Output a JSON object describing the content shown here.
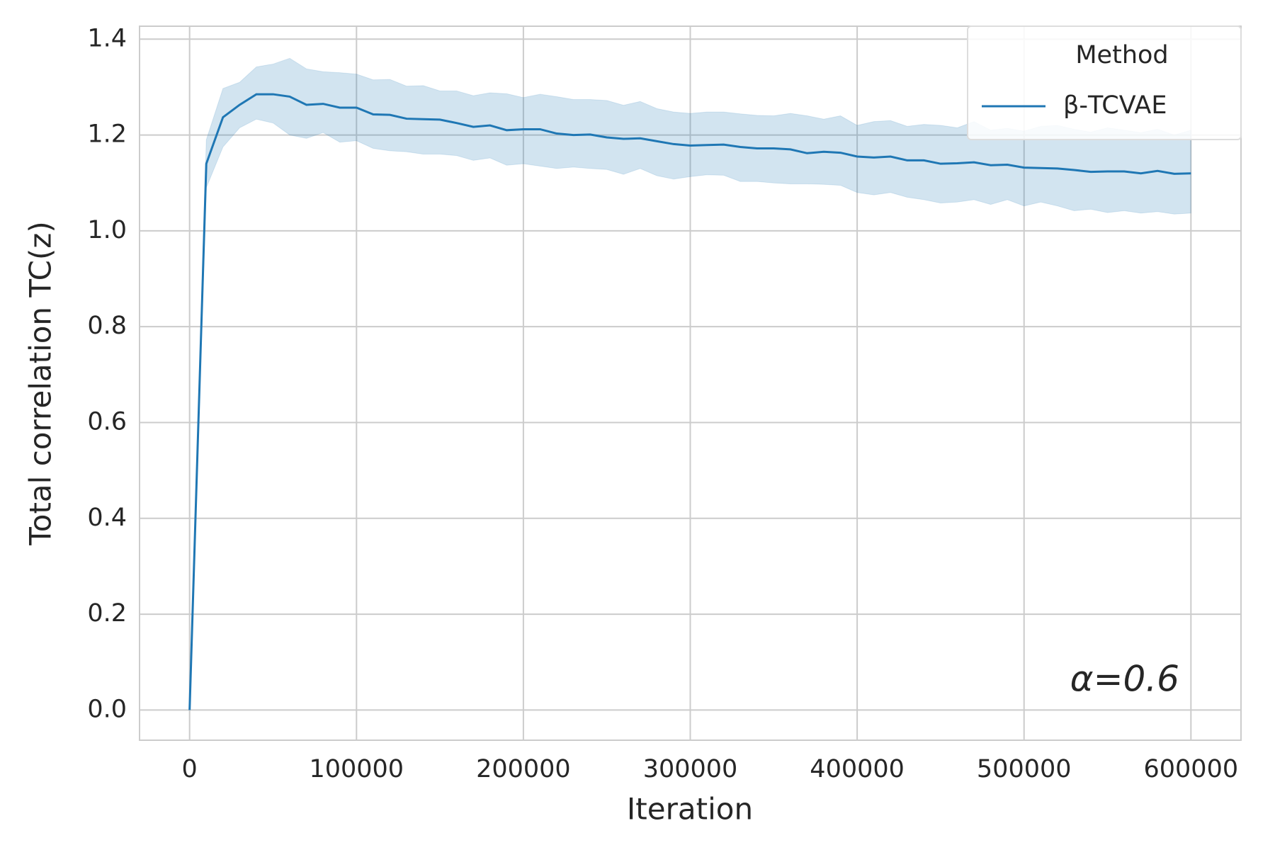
{
  "chart_data": {
    "type": "line",
    "xlabel": "Iteration",
    "ylabel": "Total correlation TC(z)",
    "annotation": "α=0.6",
    "legend_title": "Method",
    "legend_position": "upper right",
    "grid": true,
    "xlim": [
      -30000,
      630000
    ],
    "ylim": [
      -0.063,
      1.427
    ],
    "xticks": [
      0,
      100000,
      200000,
      300000,
      400000,
      500000,
      600000
    ],
    "yticks": [
      {
        "value": 0,
        "label": "0.0"
      },
      0.2,
      0.4,
      0.6,
      0.8,
      {
        "value": 1,
        "label": "1.0"
      },
      1.2,
      1.4
    ],
    "x": [
      0,
      10000,
      20000,
      30000,
      40000,
      50000,
      60000,
      70000,
      80000,
      90000,
      100000,
      110000,
      120000,
      130000,
      140000,
      150000,
      160000,
      170000,
      180000,
      190000,
      200000,
      210000,
      220000,
      230000,
      240000,
      250000,
      260000,
      270000,
      280000,
      290000,
      300000,
      310000,
      320000,
      330000,
      340000,
      350000,
      360000,
      370000,
      380000,
      390000,
      400000,
      410000,
      420000,
      430000,
      440000,
      450000,
      460000,
      470000,
      480000,
      490000,
      500000,
      510000,
      520000,
      530000,
      540000,
      550000,
      560000,
      570000,
      580000,
      590000,
      600000
    ],
    "series": [
      {
        "name": "β-TCVAE",
        "color": "#1f77b4",
        "values": [
          0,
          1.14,
          1.237,
          1.263,
          1.285,
          1.285,
          1.28,
          1.263,
          1.265,
          1.257,
          1.257,
          1.243,
          1.242,
          1.234,
          1.233,
          1.232,
          1.225,
          1.217,
          1.22,
          1.21,
          1.212,
          1.212,
          1.203,
          1.2,
          1.201,
          1.195,
          1.192,
          1.193,
          1.187,
          1.181,
          1.178,
          1.179,
          1.18,
          1.175,
          1.172,
          1.172,
          1.17,
          1.162,
          1.165,
          1.163,
          1.155,
          1.153,
          1.155,
          1.147,
          1.147,
          1.14,
          1.141,
          1.143,
          1.137,
          1.138,
          1.132,
          1.131,
          1.13,
          1.127,
          1.123,
          1.124,
          1.124,
          1.12,
          1.125,
          1.119,
          1.12
        ],
        "upper": [
          0,
          1.19,
          1.297,
          1.31,
          1.342,
          1.348,
          1.36,
          1.338,
          1.332,
          1.33,
          1.327,
          1.315,
          1.316,
          1.302,
          1.303,
          1.292,
          1.292,
          1.282,
          1.288,
          1.286,
          1.278,
          1.285,
          1.28,
          1.274,
          1.274,
          1.272,
          1.262,
          1.27,
          1.255,
          1.248,
          1.245,
          1.248,
          1.248,
          1.244,
          1.241,
          1.24,
          1.245,
          1.24,
          1.233,
          1.24,
          1.22,
          1.228,
          1.23,
          1.218,
          1.222,
          1.22,
          1.215,
          1.228,
          1.21,
          1.214,
          1.208,
          1.218,
          1.22,
          1.212,
          1.206,
          1.215,
          1.21,
          1.205,
          1.212,
          1.2,
          1.21
        ],
        "lower": [
          0,
          1.09,
          1.175,
          1.215,
          1.233,
          1.225,
          1.2,
          1.193,
          1.205,
          1.185,
          1.188,
          1.172,
          1.167,
          1.165,
          1.16,
          1.16,
          1.157,
          1.147,
          1.152,
          1.137,
          1.14,
          1.135,
          1.13,
          1.133,
          1.13,
          1.128,
          1.118,
          1.13,
          1.115,
          1.108,
          1.113,
          1.117,
          1.116,
          1.103,
          1.103,
          1.1,
          1.098,
          1.098,
          1.097,
          1.095,
          1.08,
          1.075,
          1.08,
          1.07,
          1.065,
          1.058,
          1.06,
          1.065,
          1.055,
          1.065,
          1.052,
          1.06,
          1.052,
          1.042,
          1.045,
          1.038,
          1.042,
          1.037,
          1.04,
          1.035,
          1.037
        ]
      }
    ]
  }
}
